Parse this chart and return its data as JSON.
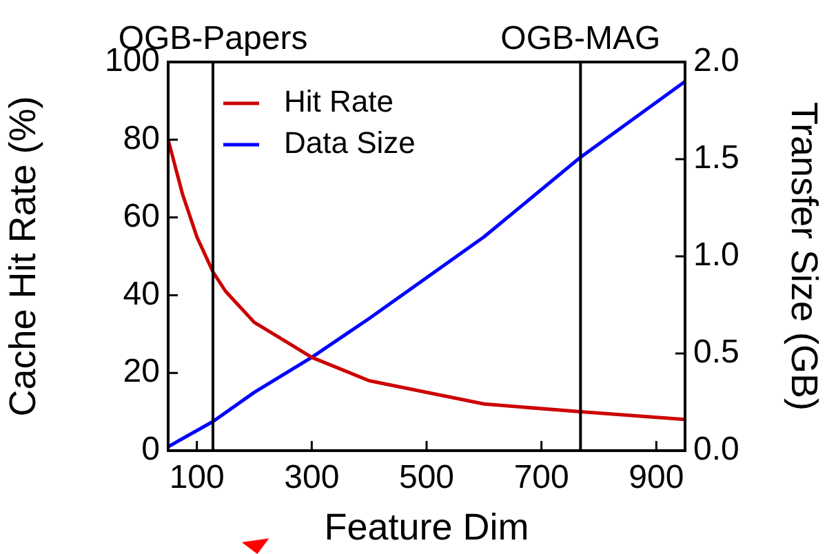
{
  "chart_data": {
    "type": "line",
    "xlabel": "Feature Dim",
    "ylabel": "Cache Hit Rate (%)",
    "y2label": "Transfer Size (GB)",
    "xlim": [
      50,
      950
    ],
    "xticks": [
      100,
      300,
      500,
      700,
      900
    ],
    "ylim": [
      0,
      100
    ],
    "yticks": [
      0,
      20,
      40,
      60,
      80,
      100
    ],
    "y2lim": [
      0,
      2.0
    ],
    "y2ticks": [
      {
        "value": 0,
        "label": "0.0"
      },
      {
        "value": 0.5,
        "label": "0.5"
      },
      {
        "value": 1,
        "label": "1.0"
      },
      {
        "value": 1.5,
        "label": "1.5"
      },
      {
        "value": 2,
        "label": "2.0"
      }
    ],
    "series": [
      {
        "name": "Hit Rate",
        "color": "#cc0000",
        "x": [
          50,
          75,
          100,
          128,
          150,
          200,
          256,
          300,
          400,
          600,
          768,
          950
        ],
        "values": [
          80,
          66,
          55,
          46,
          41,
          33,
          28,
          24,
          18,
          12,
          10,
          8
        ]
      },
      {
        "name": "Data Size",
        "color": "#0000ff",
        "axis": "y2",
        "x": [
          50,
          128,
          200,
          300,
          400,
          600,
          768,
          950
        ],
        "values": [
          0.02,
          0.15,
          0.3,
          0.48,
          0.68,
          1.1,
          1.51,
          1.9
        ]
      }
    ],
    "ref_lines": [
      {
        "axis": "x",
        "value": 128,
        "label": "OGB-Papers",
        "color": "#000000"
      },
      {
        "axis": "x",
        "value": 768,
        "label": "OGB-MAG",
        "color": "#000000"
      }
    ],
    "legend": "top left",
    "grid": false,
    "marker": "none",
    "line_style": "solid"
  }
}
